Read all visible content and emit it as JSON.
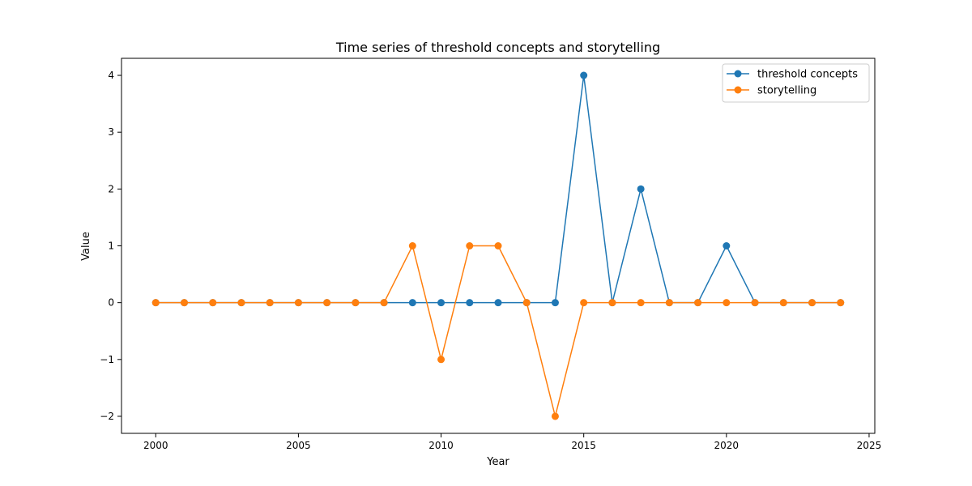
{
  "chart_data": {
    "type": "line",
    "title": "Time series of threshold concepts and storytelling",
    "xlabel": "Year",
    "ylabel": "Value",
    "x": [
      2000,
      2001,
      2002,
      2003,
      2004,
      2005,
      2006,
      2007,
      2008,
      2009,
      2010,
      2011,
      2012,
      2013,
      2014,
      2015,
      2016,
      2017,
      2018,
      2019,
      2020,
      2021,
      2022,
      2023,
      2024
    ],
    "xlim": [
      1998.8,
      2025.2
    ],
    "ylim": [
      -2.3,
      4.3
    ],
    "xticks": [
      2000,
      2005,
      2010,
      2015,
      2020,
      2025
    ],
    "yticks": [
      -2,
      -1,
      0,
      1,
      2,
      3,
      4
    ],
    "xtick_labels": [
      "2000",
      "2005",
      "2010",
      "2015",
      "2020",
      "2025"
    ],
    "ytick_labels": [
      "−2",
      "−1",
      "0",
      "1",
      "2",
      "3",
      "4"
    ],
    "grid": false,
    "legend_position": "top-right",
    "series": [
      {
        "name": "threshold concepts",
        "color": "#1f77b4",
        "values": [
          0,
          0,
          0,
          0,
          0,
          0,
          0,
          0,
          0,
          0,
          0,
          0,
          0,
          0,
          0,
          4,
          0,
          2,
          0,
          0,
          1,
          0,
          0,
          0,
          0
        ]
      },
      {
        "name": "storytelling",
        "color": "#ff7f0e",
        "values": [
          0,
          0,
          0,
          0,
          0,
          0,
          0,
          0,
          0,
          1,
          -1,
          1,
          1,
          0,
          -2,
          0,
          0,
          0,
          0,
          0,
          0,
          0,
          0,
          0,
          0
        ]
      }
    ]
  }
}
